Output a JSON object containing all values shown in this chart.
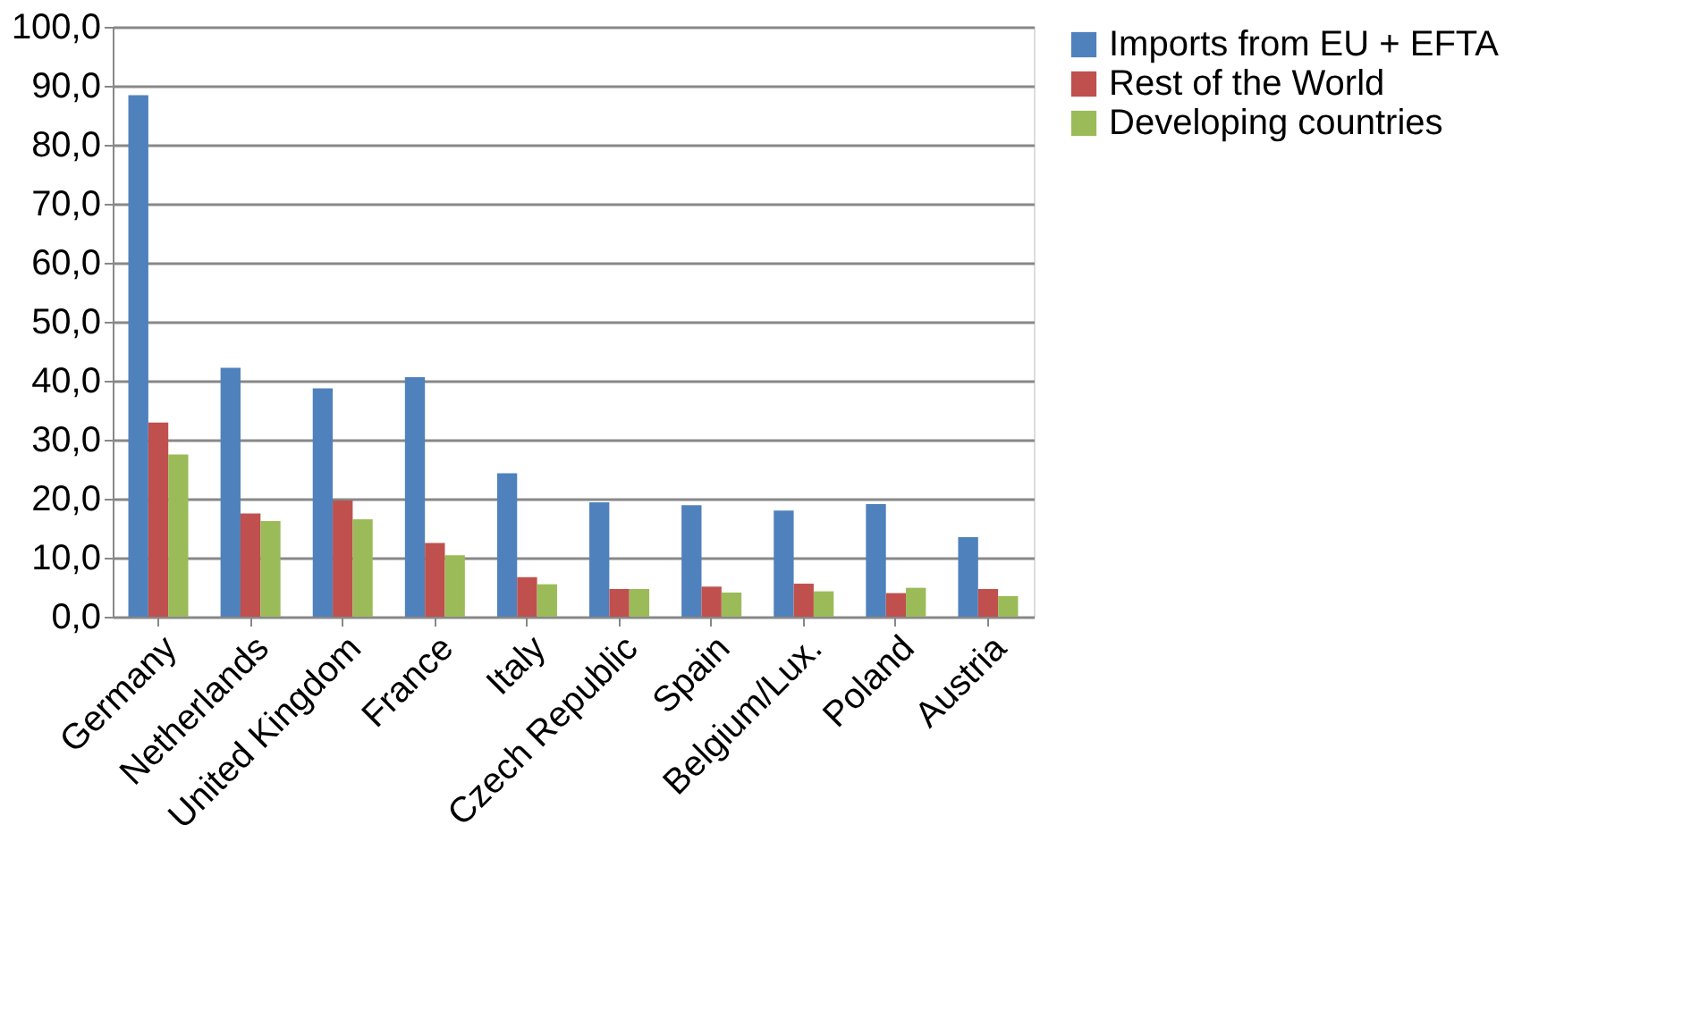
{
  "chart_data": {
    "type": "bar",
    "categories": [
      "Germany",
      "Netherlands",
      "United Kingdom",
      "France",
      "Italy",
      "Czech Republic",
      "Spain",
      "Belgium/Lux.",
      "Poland",
      "Austria"
    ],
    "series": [
      {
        "name": "Imports from EU + EFTA",
        "color": "#4f81bd",
        "values": [
          88.4,
          42.2,
          38.7,
          40.6,
          24.3,
          19.4,
          18.9,
          18.0,
          19.1,
          13.5
        ]
      },
      {
        "name": "Rest of the World",
        "color": "#c0504d",
        "values": [
          32.9,
          17.5,
          19.7,
          12.5,
          6.7,
          4.7,
          5.1,
          5.6,
          4.0,
          4.7
        ]
      },
      {
        "name": "Developing countries",
        "color": "#9bbb59",
        "values": [
          27.5,
          16.2,
          16.5,
          10.4,
          5.5,
          4.7,
          4.1,
          4.3,
          4.9,
          3.5
        ]
      }
    ],
    "ylim": [
      0,
      100
    ],
    "yticks": [
      {
        "value": 0,
        "label": "0,0"
      },
      {
        "value": 10,
        "label": "10,0"
      },
      {
        "value": 20,
        "label": "20,0"
      },
      {
        "value": 30,
        "label": "30,0"
      },
      {
        "value": 40,
        "label": "40,0"
      },
      {
        "value": 50,
        "label": "50,0"
      },
      {
        "value": 60,
        "label": "60,0"
      },
      {
        "value": 70,
        "label": "70,0"
      },
      {
        "value": 80,
        "label": "80,0"
      },
      {
        "value": 90,
        "label": "90,0"
      },
      {
        "value": 100,
        "label": "100,0"
      }
    ],
    "grid": "y",
    "legend": "right"
  }
}
